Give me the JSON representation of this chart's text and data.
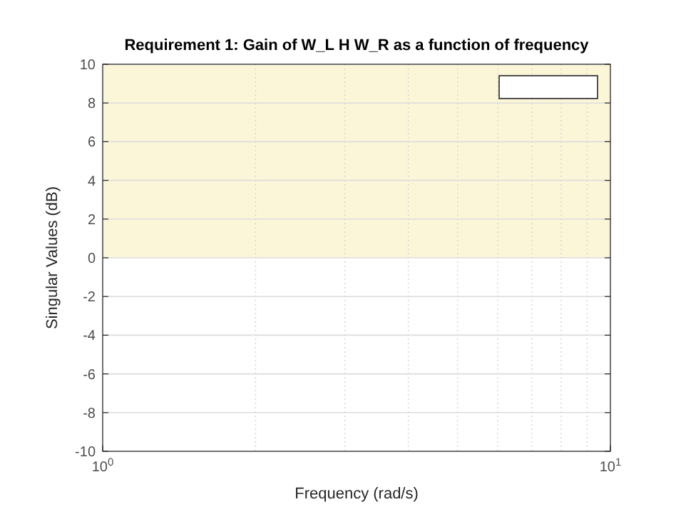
{
  "chart_data": {
    "type": "line",
    "title": "Requirement 1: Gain of W_L H W_R as a function of frequency",
    "xlabel": "Frequency (rad/s)",
    "ylabel": "Singular Values (dB)",
    "log": "x",
    "xlim": [
      1,
      10
    ],
    "xticks": [
      {
        "value": 1,
        "label": "10$^{0}$"
      },
      {
        "value": 10,
        "label": "10$^{1}$"
      }
    ],
    "ylim": [
      -10,
      10
    ],
    "yticks": [
      -10,
      -8,
      -6,
      -4,
      -2,
      0,
      2,
      4,
      6,
      8,
      10
    ],
    "grid": true,
    "bands": [
      {
        "axis": "y",
        "from": 0,
        "to": 10,
        "color": "#fcf6d9"
      }
    ]
  }
}
